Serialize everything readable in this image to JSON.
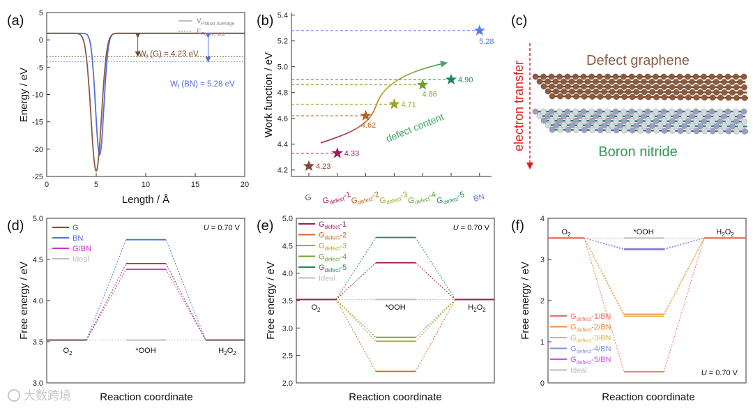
{
  "panels": {
    "a": {
      "letter": "(a)",
      "xlabel": "Length / Å",
      "ylabel": "Energy / eV",
      "xticks": [
        0,
        5,
        10,
        15,
        20
      ],
      "yticks": [
        5,
        0,
        -5,
        -10,
        -15,
        -20,
        -25
      ],
      "legend": [
        {
          "label": "V",
          "sub": "Planar Average",
          "style": "solid"
        },
        {
          "label": "E",
          "sub": "Fermi, slab",
          "style": "dotted"
        }
      ],
      "wf_g": {
        "pre": "W",
        "sub": "f",
        "post": " (G) = 4.23 eV",
        "color": "#7b4a3a"
      },
      "wf_bn": {
        "pre": "W",
        "sub": "f",
        "post": " (BN) = 5.28 eV",
        "color": "#4f6fe0"
      }
    },
    "b": {
      "letter": "(b)",
      "ylabel": "Work function / eV",
      "yticks": [
        4.2,
        4.4,
        4.6,
        4.8,
        5.0,
        5.2,
        5.4
      ],
      "annotation": "defect content"
    },
    "c": {
      "letter": "(c)",
      "top_label": "Defect graphene",
      "bottom_label": "Boron nitride",
      "arrow_label": "electron transfer"
    },
    "d": {
      "letter": "(d)",
      "xlabel": "Reaction coordinate",
      "ylabel": "Free energy / eV",
      "yticks": [
        "3.0",
        "3.5",
        "4.0",
        "4.5",
        "5.0"
      ],
      "u_label": "U = 0.70 V",
      "states": [
        "O",
        "*OOH",
        "H",
        "O"
      ],
      "legend": [
        "G",
        "BN",
        "G/BN",
        "Ideal"
      ]
    },
    "e": {
      "letter": "(e)",
      "xlabel": "Reaction coordinate",
      "ylabel": "Free energy / eV",
      "yticks": [
        "2.0",
        "2.5",
        "3.0",
        "3.5",
        "4.0",
        "4.5",
        "5.0"
      ],
      "u_label": "U = 0.70 V",
      "state_ooh": "*OOH",
      "legend": [
        "G",
        "G",
        "G",
        "G",
        "G",
        "Ideal"
      ],
      "legend_sub": [
        "defect",
        "defect",
        "defect",
        "defect",
        "defect",
        ""
      ],
      "legend_post": [
        "-1",
        "-2",
        "-3",
        "-4",
        "-5",
        ""
      ]
    },
    "f": {
      "letter": "(f)",
      "xlabel": "Reaction coordinate",
      "ylabel": "Free energy / eV",
      "yticks": [
        "0",
        "1",
        "2",
        "3",
        "4"
      ],
      "u_label": "U = 0.70 V",
      "state_ooh": "*OOH",
      "legend": [
        "G",
        "G",
        "G",
        "G",
        "G",
        "Ideal"
      ],
      "legend_sub": [
        "defect",
        "defect",
        "defect",
        "defect",
        "defect",
        ""
      ],
      "legend_post": [
        "-1/BN",
        "-2/BN",
        "-3/BN",
        "-4/BN",
        "-5/BN",
        ""
      ]
    }
  },
  "watermark": "大数跨境",
  "chart_data": [
    {
      "panel": "a",
      "type": "line",
      "xlabel": "Length / Å",
      "ylabel": "Energy / eV",
      "xlim": [
        0,
        20
      ],
      "ylim": [
        -25,
        5
      ],
      "series": [
        {
          "name": "V Planar Average (G)",
          "color": "#8a5a44",
          "well_center": 5.0,
          "well_depth": -24.0,
          "plateau": 1.2
        },
        {
          "name": "V Planar Average (BN)",
          "color": "#4f6fe0",
          "well_center": 5.35,
          "well_depth": -21.0,
          "plateau": 1.2
        },
        {
          "name": "E Fermi, slab (G)",
          "color": "#8a5a44",
          "value": -3.0
        },
        {
          "name": "E Fermi, slab (BN)",
          "color": "#4f6fe0",
          "value": -4.0
        }
      ]
    },
    {
      "panel": "b",
      "type": "scatter",
      "ylabel": "Work function / eV",
      "ylim": [
        4.15,
        5.42
      ],
      "categories": [
        "G",
        "Gdefect-1",
        "Gdefect-2",
        "Gdefect-3",
        "Gdefect-4",
        "Gdefect-5",
        "BN"
      ],
      "category_parts": [
        {
          "pre": "G",
          "sub": "",
          "post": ""
        },
        {
          "pre": "G",
          "sub": "defect",
          "post": "-1"
        },
        {
          "pre": "G",
          "sub": "defect",
          "post": "-2"
        },
        {
          "pre": "G",
          "sub": "defect",
          "post": "-3"
        },
        {
          "pre": "G",
          "sub": "defect",
          "post": "-4"
        },
        {
          "pre": "G",
          "sub": "defect",
          "post": "-5"
        },
        {
          "pre": "BN",
          "sub": "",
          "post": ""
        }
      ],
      "values": [
        4.23,
        4.33,
        4.62,
        4.71,
        4.86,
        4.9,
        5.28
      ],
      "labels": [
        "4.23",
        "4.33",
        "4.62",
        "4.71",
        "4.86",
        "4.90",
        "5.28"
      ],
      "colors": [
        "#7b4a3a",
        "#a2185b",
        "#b5651d",
        "#9fa61f",
        "#6ea32b",
        "#1e8a5a",
        "#5a78ef"
      ]
    },
    {
      "panel": "d",
      "type": "line",
      "ylim": [
        3.0,
        5.0
      ],
      "categories": [
        "O2",
        "*OOH",
        "H2O2"
      ],
      "series": [
        {
          "name": "G",
          "color": "#7b4a3a",
          "values": [
            3.52,
            4.45,
            3.52
          ]
        },
        {
          "name": "BN",
          "color": "#4f6fe0",
          "values": [
            3.52,
            4.74,
            3.52
          ]
        },
        {
          "name": "G/BN",
          "color": "#cc33cc",
          "values": [
            3.52,
            4.38,
            3.52
          ]
        },
        {
          "name": "Ideal",
          "color": "#bdbdbd",
          "values": [
            3.52,
            3.52,
            3.52
          ]
        }
      ]
    },
    {
      "panel": "e",
      "type": "line",
      "ylim": [
        2.0,
        5.0
      ],
      "categories": [
        "O2",
        "*OOH",
        "H2O2"
      ],
      "series": [
        {
          "name": "Gdefect-1",
          "color": "#a2185b",
          "values": [
            3.52,
            4.19,
            3.52
          ]
        },
        {
          "name": "Gdefect-2",
          "color": "#d2691e",
          "values": [
            3.52,
            2.21,
            3.52
          ]
        },
        {
          "name": "Gdefect-3",
          "color": "#b5a21f",
          "values": [
            3.52,
            2.76,
            3.52
          ]
        },
        {
          "name": "Gdefect-4",
          "color": "#6ea32b",
          "values": [
            3.52,
            2.83,
            3.52
          ]
        },
        {
          "name": "Gdefect-5",
          "color": "#1e8a5a",
          "values": [
            3.52,
            4.65,
            3.52
          ]
        },
        {
          "name": "Ideal",
          "color": "#bdbdbd",
          "values": [
            3.52,
            3.52,
            3.52
          ]
        }
      ]
    },
    {
      "panel": "f",
      "type": "line",
      "ylim": [
        0,
        4
      ],
      "categories": [
        "O2",
        "*OOH",
        "H2O2"
      ],
      "series": [
        {
          "name": "Gdefect-1/BN",
          "color": "#f26b5b",
          "values": [
            3.52,
            0.27,
            3.52
          ]
        },
        {
          "name": "Gdefect-2/BN",
          "color": "#f08a3c",
          "values": [
            3.52,
            1.67,
            3.52
          ]
        },
        {
          "name": "Gdefect-3/BN",
          "color": "#e5b440",
          "values": [
            3.52,
            1.62,
            3.52
          ]
        },
        {
          "name": "Gdefect-4/BN",
          "color": "#7f8fdc",
          "values": [
            3.52,
            3.26,
            3.52
          ]
        },
        {
          "name": "Gdefect-5/BN",
          "color": "#bf55e6",
          "values": [
            3.52,
            3.24,
            3.52
          ]
        },
        {
          "name": "Ideal",
          "color": "#bdbdbd",
          "values": [
            3.52,
            3.52,
            3.52
          ]
        }
      ]
    }
  ]
}
